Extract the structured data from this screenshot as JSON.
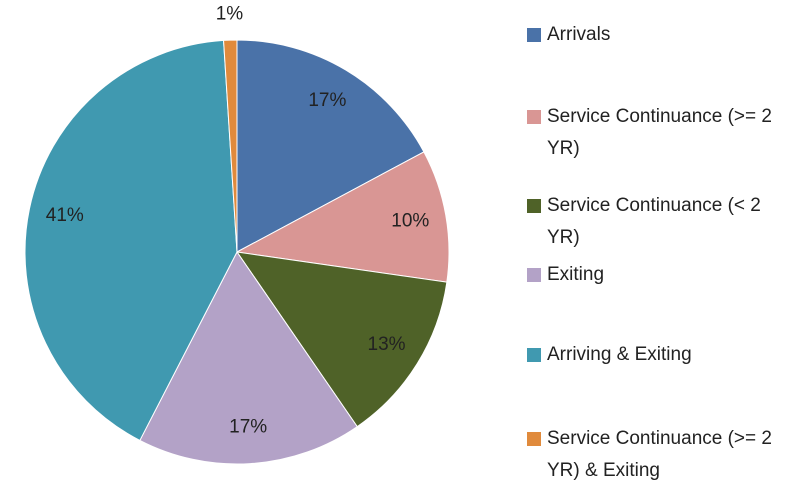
{
  "chart_data": {
    "type": "pie",
    "categories": [
      "Arrivals",
      "Service Continuance (>= 2 YR)",
      "Service Continuance (< 2 YR)",
      "Exiting",
      "Arriving & Exiting",
      "Service Continuance (>= 2 YR) & Exiting"
    ],
    "values": [
      17,
      10,
      13,
      17,
      41,
      1
    ],
    "value_labels": [
      "17%",
      "10%",
      "13%",
      "17%",
      "41%",
      "1%"
    ],
    "colors": [
      "#4a72a8",
      "#d99694",
      "#4f6228",
      "#b3a2c7",
      "#4099b0",
      "#e08a3c"
    ],
    "legend": "right"
  }
}
